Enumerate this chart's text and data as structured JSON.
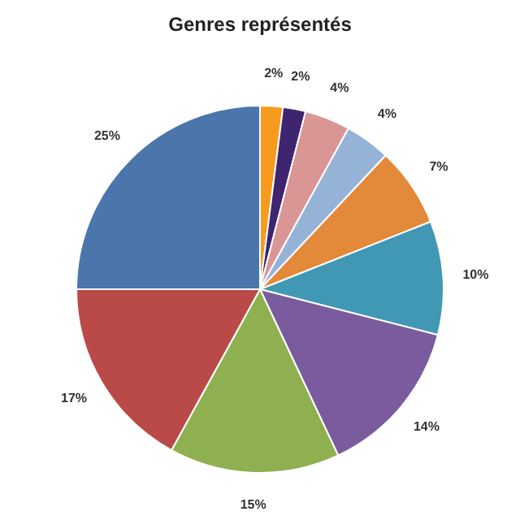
{
  "chart_data": {
    "type": "pie",
    "title": "Genres représentés",
    "categories": [
      null,
      null,
      null,
      null,
      null,
      null,
      null,
      null,
      null,
      null
    ],
    "values": [
      2,
      2,
      4,
      4,
      7,
      10,
      14,
      15,
      17,
      25
    ],
    "colors": [
      "#f79a1e",
      "#3f2470",
      "#d99694",
      "#95b3d7",
      "#e3893a",
      "#4198b5",
      "#7a5c9e",
      "#8fb050",
      "#b94a48",
      "#4a76ab"
    ],
    "value_labels": [
      "2%",
      "2%",
      "4%",
      "4%",
      "7%",
      "10%",
      "14%",
      "15%",
      "17%",
      "25%"
    ],
    "legend": false
  }
}
